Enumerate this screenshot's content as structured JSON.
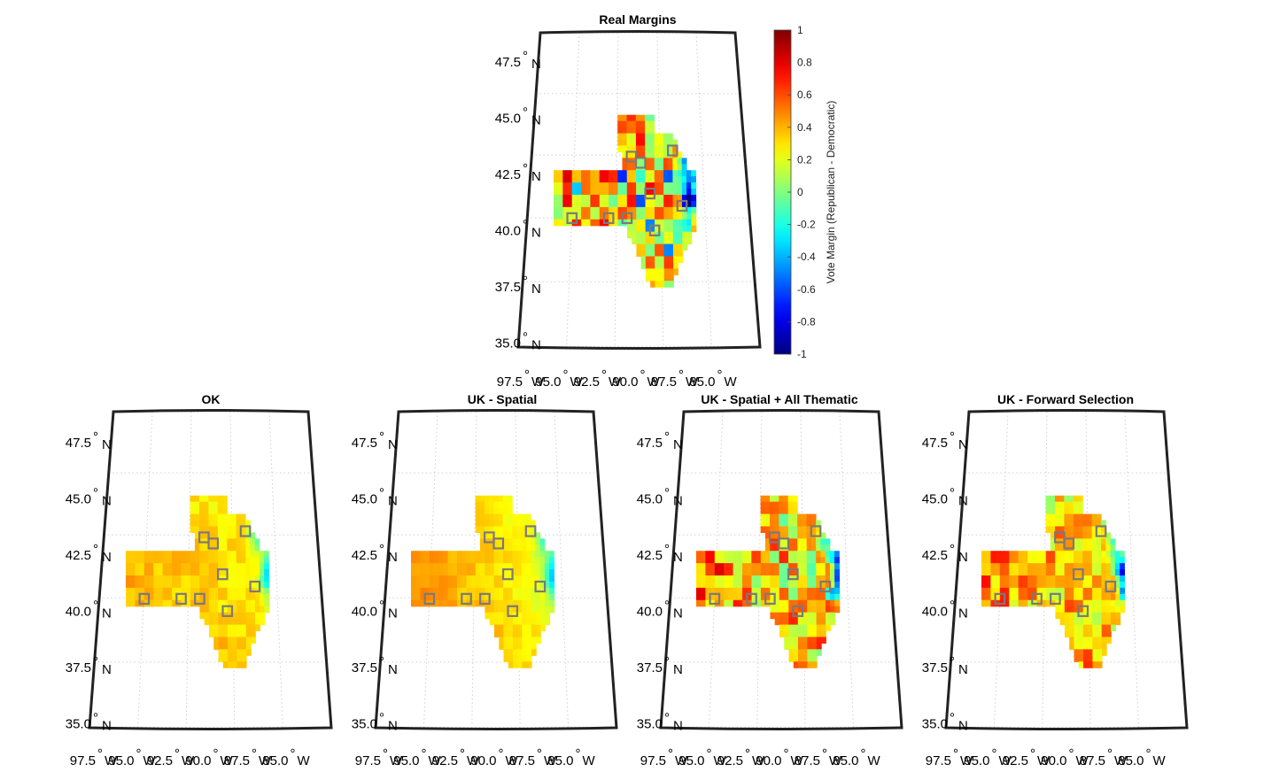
{
  "colorbar": {
    "label": "Vote Margin (Republican - Democratic)",
    "range": [
      -1,
      1
    ],
    "ticks": [
      "1",
      "0.8",
      "0.6",
      "0.4",
      "0.2",
      "0",
      "-0.2",
      "-0.4",
      "-0.6",
      "-0.8",
      "-1"
    ],
    "colormap": "jet"
  },
  "axes": {
    "lat_labels": [
      "47.5",
      "45.0",
      "42.5",
      "40.0",
      "37.5",
      "35.0"
    ],
    "lon_labels": [
      "97.5",
      "95.0",
      "92.5",
      "90.0",
      "87.5",
      "85.0"
    ],
    "lat_suffix": "N",
    "lon_suffix": "W",
    "degree_symbol": "°"
  },
  "panels": [
    {
      "title": "Real Margins",
      "method": "real",
      "noise": 0.9
    },
    {
      "title": "OK",
      "method": "ok",
      "noise": 0.15
    },
    {
      "title": "UK - Spatial",
      "method": "uk_spatial",
      "noise": 0.12
    },
    {
      "title": "UK - Spatial + All Thematic",
      "method": "uk_thematic",
      "noise": 0.75
    },
    {
      "title": "UK - Forward Selection",
      "method": "uk_forward",
      "noise": 0.55
    }
  ]
}
